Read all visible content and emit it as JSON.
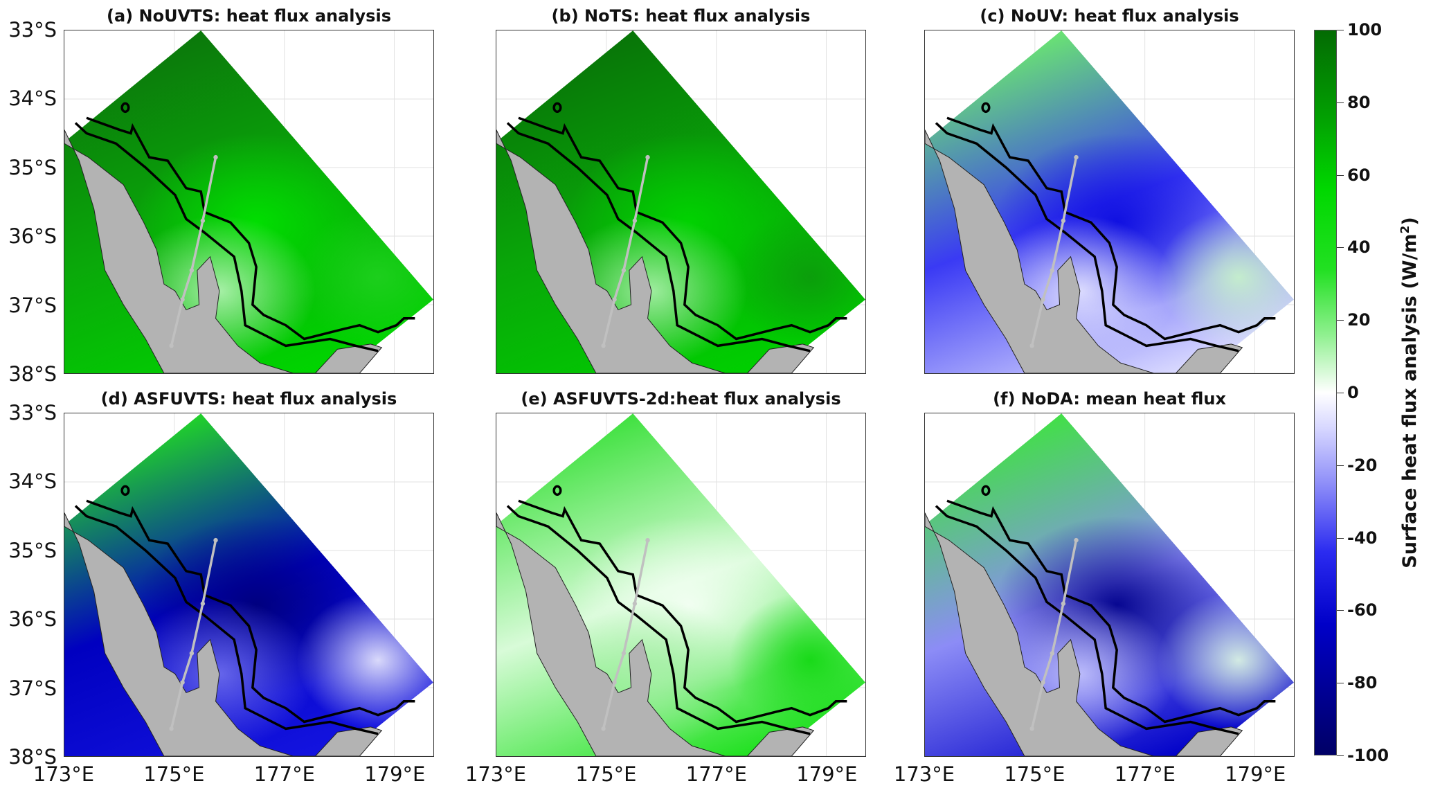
{
  "figure": {
    "panels": [
      {
        "title": "(a) NoUVTS: heat flux analysis",
        "colors": {
          "top": "#0b760b",
          "mid": "#0aa80a",
          "low": "#00d600",
          "blob": "#00e000",
          "blob2": "#1fd01f",
          "coast": "#b8f5b8"
        }
      },
      {
        "title": "(b) NoTS: heat flux analysis",
        "colors": {
          "top": "#087208",
          "mid": "#09a609",
          "low": "#00d000",
          "blob": "#00d400",
          "blob2": "#0c9a0c",
          "coast": "#b0f2b0"
        }
      },
      {
        "title": "(c) NoUV: heat flux analysis",
        "colors": {
          "top": "#6cec6c",
          "mid": "#3a3af4",
          "low": "#dcdcff",
          "blob": "#0d0de0",
          "blob2": "#c8f5c8",
          "coast": "#e8e8ff"
        }
      },
      {
        "title": "(d) ASFUVTS: heat flux analysis",
        "colors": {
          "top": "#22dd22",
          "mid": "#0000c0",
          "low": "#1414e0",
          "blob": "#00007c",
          "blob2": "#f0f0ff",
          "coast": "#7070f0"
        }
      },
      {
        "title": "(e) ASFUVTS-2d:heat flux analysis",
        "colors": {
          "top": "#38e038",
          "mid": "#d8fbd8",
          "low": "#1ee01e",
          "blob": "#f4fff4",
          "blob2": "#10d810",
          "coast": "#a6efa6"
        }
      },
      {
        "title": "(f) NoDA: mean heat flux",
        "colors": {
          "top": "#3ee43e",
          "mid": "#8c8cf6",
          "low": "#0000c8",
          "blob": "#00008c",
          "blob2": "#e4ffe4",
          "coast": "#c8c8ff"
        }
      }
    ],
    "y_ticks": [
      "33°S",
      "34°S",
      "35°S",
      "36°S",
      "37°S",
      "38°S"
    ],
    "x_ticks": [
      "173°E",
      "175°E",
      "177°E",
      "179°E"
    ],
    "land_color": "#b3b3b3",
    "contour_color": "#000000",
    "transect_color": "#c0c0c0"
  },
  "chart_data": {
    "type": "heatmap",
    "title": "Surface heat flux maps (6 panels)",
    "panel_titles": [
      "(a) NoUVTS: heat flux analysis",
      "(b) NoTS: heat flux analysis",
      "(c) NoUV: heat flux analysis",
      "(d) ASFUVTS: heat flux analysis",
      "(e) ASFUVTS-2d:heat flux analysis",
      "(f) NoDA: mean heat flux"
    ],
    "xlim": [
      173,
      179.7
    ],
    "ylim": [
      -38,
      -33
    ],
    "colorbar": {
      "label": "Surface heat flux analysis (W/m²)",
      "label_main": "Surface heat flux analysis (W/m",
      "label_sup": "2",
      "label_end": ")",
      "range": [
        -100,
        100
      ],
      "ticks": [
        "100",
        "80",
        "60",
        "40",
        "20",
        "0",
        "-20",
        "-40",
        "-60",
        "-80",
        "-100"
      ],
      "colormap": [
        "#000066",
        "#0000c8",
        "#ffffff",
        "#00d800",
        "#036b03"
      ]
    }
  }
}
